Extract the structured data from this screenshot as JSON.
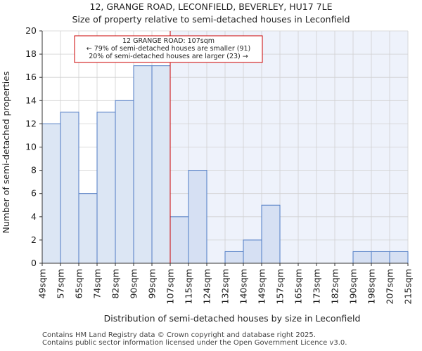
{
  "chart_data": {
    "type": "histogram",
    "title": "12, GRANGE ROAD, LECONFIELD, BEVERLEY, HU17 7LE",
    "subtitle": "Size of property relative to semi-detached houses in Leconfield",
    "xlabel": "Distribution of semi-detached houses by size in Leconfield",
    "ylabel": "Number of semi-detached properties",
    "categories": [
      "49sqm",
      "57sqm",
      "65sqm",
      "74sqm",
      "82sqm",
      "90sqm",
      "99sqm",
      "107sqm",
      "115sqm",
      "124sqm",
      "132sqm",
      "140sqm",
      "149sqm",
      "157sqm",
      "165sqm",
      "173sqm",
      "182sqm",
      "190sqm",
      "198sqm",
      "207sqm",
      "215sqm"
    ],
    "values": [
      12,
      13,
      6,
      13,
      14,
      17,
      17,
      4,
      8,
      0,
      1,
      2,
      5,
      0,
      0,
      0,
      0,
      1,
      1,
      1
    ],
    "ylim": [
      0,
      20
    ],
    "yticks": [
      0,
      2,
      4,
      6,
      8,
      10,
      12,
      14,
      16,
      18,
      20
    ],
    "marker_value": "107sqm",
    "marker_index": 7,
    "annotation": {
      "line1": "12 GRANGE ROAD: 107sqm",
      "line2": "← 79% of semi-detached houses are smaller (91)",
      "line3": "20% of semi-detached houses are larger (23) →"
    },
    "colors": {
      "bar_fill_left": "#dce6f4",
      "bar_fill_right": "#d6e0f3",
      "bar_stroke": "#4f7bc4",
      "highlight_bg": "#eef2fb",
      "marker": "#cc0000"
    }
  },
  "footer": {
    "line1": "Contains HM Land Registry data © Crown copyright and database right 2025.",
    "line2": "Contains public sector information licensed under the Open Government Licence v3.0."
  }
}
